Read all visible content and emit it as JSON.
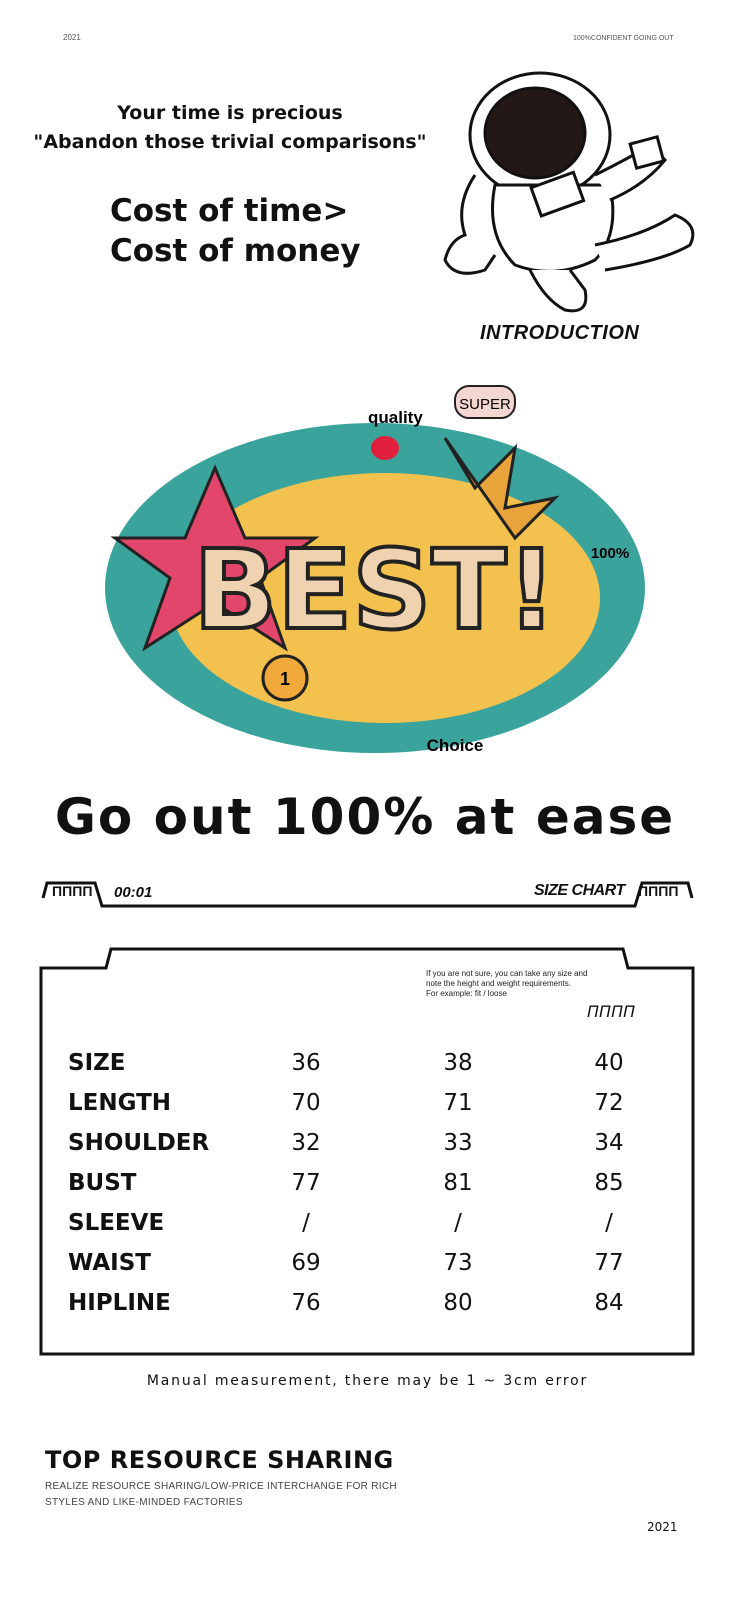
{
  "header": {
    "year": "2021",
    "tagline": "100%CONFIDENT GOING OUT"
  },
  "hero": {
    "line1": "Your time is precious",
    "line2": "\"Abandon those trivial comparisons\"",
    "cost1": "Cost of time>",
    "cost2": "Cost of money",
    "intro": "INTRODUCTION"
  },
  "doodle": {
    "words": [
      "BEST!",
      "quality",
      "SUPER",
      "100%",
      "Choice",
      "1"
    ]
  },
  "slogan": "Go out 100% at ease",
  "size_bar": {
    "counter": "00:01",
    "title": "SIZE CHART",
    "glyph": "ΠΠΠΠ"
  },
  "size_chart": {
    "note": [
      "If you are not sure, you can take any size and",
      "note the height and weight requirements.",
      "For example: fit / loose"
    ],
    "glyph": "ΠΠΠΠ",
    "rows": [
      {
        "label": "SIZE",
        "values": [
          "36",
          "38",
          "40"
        ]
      },
      {
        "label": "LENGTH",
        "values": [
          "70",
          "71",
          "72"
        ]
      },
      {
        "label": "SHOULDER",
        "values": [
          "32",
          "33",
          "34"
        ]
      },
      {
        "label": "BUST",
        "values": [
          "77",
          "81",
          "85"
        ]
      },
      {
        "label": "SLEEVE",
        "values": [
          "/",
          "/",
          "/"
        ]
      },
      {
        "label": "WAIST",
        "values": [
          "69",
          "73",
          "77"
        ]
      },
      {
        "label": "HIPLINE",
        "values": [
          "76",
          "80",
          "84"
        ]
      }
    ],
    "footnote": "Manual measurement, there may be 1 ~ 3cm error"
  },
  "footer": {
    "title": "TOP RESOURCE SHARING",
    "sub1": "REALIZE RESOURCE SHARING/LOW-PRICE INTERCHANGE FOR RICH",
    "sub2": "STYLES AND LIKE-MINDED FACTORIES",
    "year": "2021"
  }
}
